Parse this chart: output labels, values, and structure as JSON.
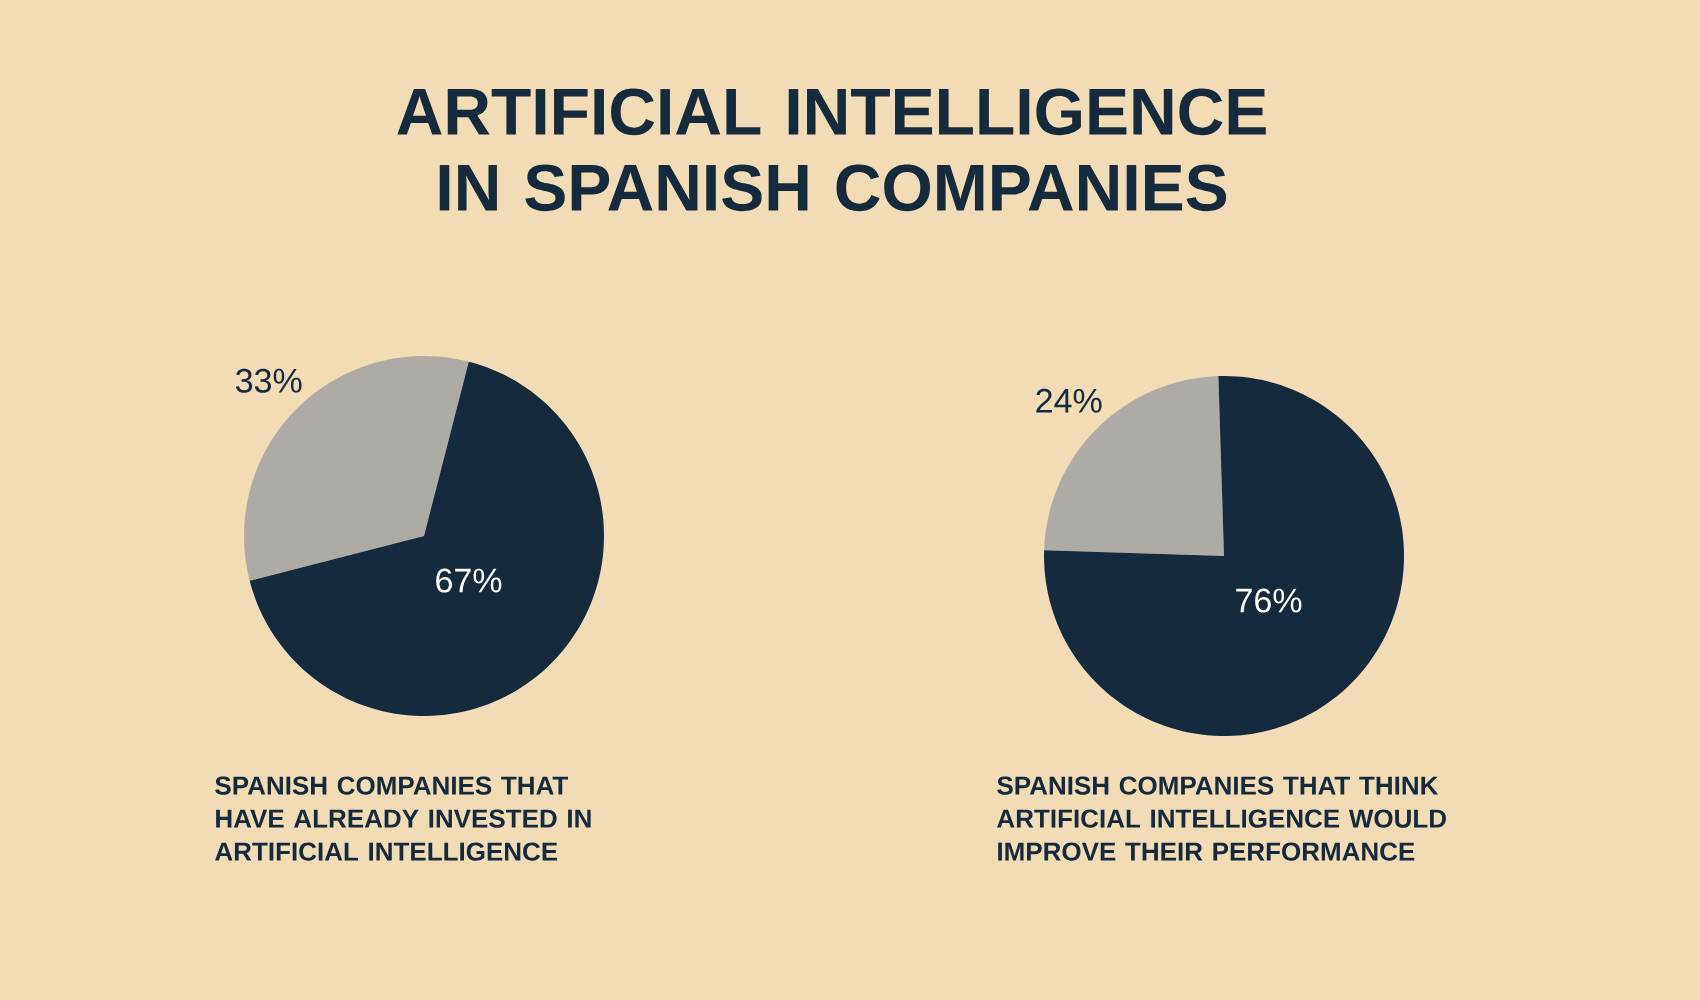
{
  "chart_data": [
    {
      "type": "pie",
      "title": "ARTIFICIAL INTELLIGENCE IN SPANISH COMPANIES",
      "categories": [
        null,
        null
      ],
      "values": [
        33,
        67
      ],
      "colors": [
        "#aeaba6",
        "#152a3c"
      ],
      "value_labels": [
        "33%",
        "67%"
      ],
      "annotations": [
        "SPANISH COMPANIES THAT HAVE ALREADY INVESTED IN ARTIFICIAL INTELLIGENCE"
      ]
    },
    {
      "type": "pie",
      "categories": [
        null,
        null
      ],
      "values": [
        24,
        76
      ],
      "colors": [
        "#aeaba6",
        "#152a3c"
      ],
      "value_labels": [
        "24%",
        "76%"
      ],
      "annotations": [
        "SPANISH COMPANIES THAT THINK ARTIFICIAL INTELLIGENCE WOULD IMPROVE THEIR PERFORMANCE"
      ]
    }
  ]
}
